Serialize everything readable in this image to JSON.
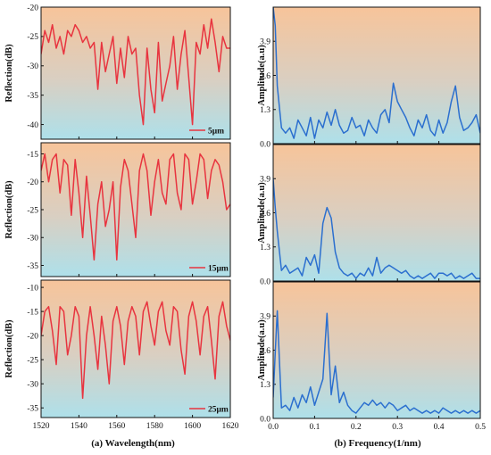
{
  "figure": {
    "left_xlabel": "(a)  Wavelength(nm)",
    "right_xlabel": "(b)  Frequency(1/nm)"
  },
  "chart_data": [
    {
      "type": "line",
      "panel": "left-top",
      "ylabel": "Reflection(dB)",
      "xlim": [
        1520,
        1620
      ],
      "ylim": [
        -42.5,
        -20
      ],
      "xticks": [
        1520,
        1540,
        1560,
        1580,
        1600,
        1620
      ],
      "yticks": [
        -20,
        -25,
        -30,
        -35,
        -40
      ],
      "show_xtick_labels": false,
      "series": [
        {
          "name": "5μm",
          "color": "#e8343f",
          "x": [
            1520,
            1522,
            1524,
            1526,
            1528,
            1530,
            1532,
            1534,
            1536,
            1538,
            1540,
            1542,
            1544,
            1546,
            1548,
            1550,
            1552,
            1554,
            1556,
            1558,
            1560,
            1562,
            1564,
            1566,
            1568,
            1570,
            1572,
            1574,
            1576,
            1578,
            1580,
            1582,
            1584,
            1586,
            1588,
            1590,
            1592,
            1594,
            1596,
            1598,
            1600,
            1602,
            1604,
            1606,
            1608,
            1610,
            1612,
            1614,
            1616,
            1618,
            1620
          ],
          "y": [
            -28,
            -24,
            -26,
            -23,
            -27,
            -25,
            -28,
            -24,
            -25,
            -23,
            -24,
            -26,
            -25,
            -27,
            -26,
            -34,
            -26,
            -31,
            -28,
            -25,
            -33,
            -27,
            -32,
            -25,
            -28,
            -27,
            -35,
            -40,
            -27,
            -34,
            -38,
            -26,
            -36,
            -33,
            -30,
            -25,
            -34,
            -28,
            -24,
            -32,
            -40,
            -26,
            -28,
            -23,
            -27,
            -22,
            -26,
            -31,
            -25,
            -27,
            -27
          ]
        }
      ]
    },
    {
      "type": "line",
      "panel": "left-middle",
      "ylabel": "Reflection(dB)",
      "xlim": [
        1520,
        1620
      ],
      "ylim": [
        -37,
        -13
      ],
      "xticks": [
        1520,
        1540,
        1560,
        1580,
        1600,
        1620
      ],
      "yticks": [
        -15,
        -20,
        -25,
        -30,
        -35
      ],
      "show_xtick_labels": false,
      "series": [
        {
          "name": "15μm",
          "color": "#e8343f",
          "x": [
            1520,
            1522,
            1524,
            1526,
            1528,
            1530,
            1532,
            1534,
            1536,
            1538,
            1540,
            1542,
            1544,
            1546,
            1548,
            1550,
            1552,
            1554,
            1556,
            1558,
            1560,
            1562,
            1564,
            1566,
            1568,
            1570,
            1572,
            1574,
            1576,
            1578,
            1580,
            1582,
            1584,
            1586,
            1588,
            1590,
            1592,
            1594,
            1596,
            1598,
            1600,
            1602,
            1604,
            1606,
            1608,
            1610,
            1612,
            1614,
            1616,
            1618,
            1620
          ],
          "y": [
            -18,
            -15,
            -20,
            -16,
            -15,
            -22,
            -16,
            -17,
            -26,
            -16,
            -22,
            -30,
            -19,
            -26,
            -34,
            -24,
            -20,
            -28,
            -25,
            -20,
            -34,
            -21,
            -16,
            -18,
            -24,
            -30,
            -18,
            -15,
            -18,
            -26,
            -20,
            -16,
            -22,
            -24,
            -16,
            -15,
            -22,
            -25,
            -15,
            -16,
            -24,
            -20,
            -15,
            -16,
            -23,
            -18,
            -16,
            -17,
            -20,
            -25,
            -24
          ]
        }
      ]
    },
    {
      "type": "line",
      "panel": "left-bottom",
      "ylabel": "Reflection(dB)",
      "xlim": [
        1520,
        1620
      ],
      "ylim": [
        -37,
        -8.5
      ],
      "xticks": [
        1520,
        1540,
        1560,
        1580,
        1600,
        1620
      ],
      "yticks": [
        -10,
        -15,
        -20,
        -25,
        -30,
        -35
      ],
      "show_xtick_labels": true,
      "series": [
        {
          "name": "25μm",
          "color": "#e8343f",
          "x": [
            1520,
            1522,
            1524,
            1526,
            1528,
            1530,
            1532,
            1534,
            1536,
            1538,
            1540,
            1542,
            1544,
            1546,
            1548,
            1550,
            1552,
            1554,
            1556,
            1558,
            1560,
            1562,
            1564,
            1566,
            1568,
            1570,
            1572,
            1574,
            1576,
            1578,
            1580,
            1582,
            1584,
            1586,
            1588,
            1590,
            1592,
            1594,
            1596,
            1598,
            1600,
            1602,
            1604,
            1606,
            1608,
            1610,
            1612,
            1614,
            1616,
            1618,
            1620
          ],
          "y": [
            -20,
            -15,
            -14,
            -19,
            -26,
            -14,
            -15,
            -24,
            -20,
            -14,
            -16,
            -33,
            -20,
            -14,
            -20,
            -27,
            -16,
            -22,
            -30,
            -17,
            -14,
            -18,
            -26,
            -17,
            -14,
            -16,
            -24,
            -15,
            -13,
            -18,
            -22,
            -15,
            -13,
            -19,
            -22,
            -14,
            -15,
            -23,
            -28,
            -16,
            -13,
            -17,
            -24,
            -16,
            -14,
            -21,
            -29,
            -16,
            -13,
            -18,
            -21
          ]
        }
      ]
    },
    {
      "type": "line",
      "panel": "right-top",
      "ylabel": "Amplitude(a.u)",
      "xlim": [
        0,
        0.5
      ],
      "ylim": [
        0,
        5.2
      ],
      "xticks": [
        0,
        0.1,
        0.2,
        0.3,
        0.4,
        0.5
      ],
      "yticks": [
        0.0,
        1.3,
        2.6,
        3.9
      ],
      "ytick_labels": [
        "0.0",
        "1.3",
        "2.6",
        "3.9"
      ],
      "show_xtick_labels": false,
      "series": [
        {
          "name": "",
          "color": "#2b6fcf",
          "x": [
            0.0,
            0.005,
            0.01,
            0.02,
            0.03,
            0.04,
            0.05,
            0.06,
            0.07,
            0.08,
            0.09,
            0.1,
            0.11,
            0.12,
            0.13,
            0.14,
            0.15,
            0.16,
            0.17,
            0.18,
            0.19,
            0.2,
            0.21,
            0.22,
            0.23,
            0.24,
            0.25,
            0.26,
            0.27,
            0.28,
            0.29,
            0.3,
            0.31,
            0.32,
            0.33,
            0.34,
            0.35,
            0.36,
            0.37,
            0.38,
            0.39,
            0.4,
            0.41,
            0.42,
            0.43,
            0.44,
            0.45,
            0.46,
            0.47,
            0.48,
            0.49,
            0.5
          ],
          "y": [
            5.2,
            4.5,
            2.2,
            0.6,
            0.4,
            0.6,
            0.2,
            0.9,
            0.6,
            0.3,
            1.0,
            0.2,
            0.9,
            0.6,
            1.2,
            0.7,
            1.3,
            0.7,
            0.4,
            0.5,
            1.0,
            0.6,
            0.7,
            0.3,
            0.9,
            0.6,
            0.4,
            1.1,
            1.3,
            0.8,
            2.3,
            1.6,
            1.3,
            1.0,
            0.6,
            0.3,
            0.9,
            0.6,
            1.1,
            0.5,
            0.3,
            0.9,
            0.4,
            0.8,
            1.6,
            2.2,
            1.0,
            0.5,
            0.6,
            0.8,
            1.1,
            0.4
          ]
        }
      ]
    },
    {
      "type": "line",
      "panel": "right-middle",
      "ylabel": "Amplitude(a.u)",
      "xlim": [
        0,
        0.5
      ],
      "ylim": [
        0,
        5.2
      ],
      "xticks": [
        0,
        0.1,
        0.2,
        0.3,
        0.4,
        0.5
      ],
      "yticks": [
        0.0,
        1.3,
        2.6,
        3.9
      ],
      "ytick_labels": [
        "0.0",
        "1.3",
        "2.6",
        "3.9"
      ],
      "show_xtick_labels": false,
      "series": [
        {
          "name": "",
          "color": "#2b6fcf",
          "x": [
            0.0,
            0.005,
            0.01,
            0.02,
            0.03,
            0.04,
            0.05,
            0.06,
            0.07,
            0.08,
            0.09,
            0.1,
            0.11,
            0.12,
            0.13,
            0.14,
            0.15,
            0.16,
            0.17,
            0.18,
            0.19,
            0.2,
            0.21,
            0.22,
            0.23,
            0.24,
            0.25,
            0.26,
            0.27,
            0.28,
            0.29,
            0.3,
            0.31,
            0.32,
            0.33,
            0.34,
            0.35,
            0.36,
            0.37,
            0.38,
            0.39,
            0.4,
            0.41,
            0.42,
            0.43,
            0.44,
            0.45,
            0.46,
            0.47,
            0.48,
            0.49,
            0.5
          ],
          "y": [
            3.9,
            2.8,
            1.9,
            0.4,
            0.6,
            0.3,
            0.4,
            0.5,
            0.2,
            0.9,
            0.6,
            1.0,
            0.3,
            2.2,
            2.8,
            2.4,
            1.1,
            0.5,
            0.3,
            0.2,
            0.3,
            0.1,
            0.3,
            0.2,
            0.5,
            0.2,
            0.9,
            0.3,
            0.5,
            0.6,
            0.5,
            0.4,
            0.3,
            0.4,
            0.2,
            0.1,
            0.2,
            0.1,
            0.2,
            0.3,
            0.1,
            0.3,
            0.3,
            0.2,
            0.3,
            0.1,
            0.2,
            0.1,
            0.2,
            0.3,
            0.1,
            0.1
          ]
        }
      ]
    },
    {
      "type": "line",
      "panel": "right-bottom",
      "ylabel": "Amplitude(a.u)",
      "xlim": [
        0,
        0.5
      ],
      "ylim": [
        0,
        5.2
      ],
      "xticks": [
        0,
        0.1,
        0.2,
        0.3,
        0.4,
        0.5
      ],
      "yticks": [
        0.0,
        1.3,
        2.6,
        3.9
      ],
      "ytick_labels": [
        "0.0",
        "1.3",
        "2.6",
        "3.9"
      ],
      "show_xtick_labels": true,
      "xtick_labels": [
        "0.0",
        "0.1",
        "0.2",
        "0.3",
        "0.4",
        "0.5"
      ],
      "series": [
        {
          "name": "",
          "color": "#2b6fcf",
          "x": [
            0.0,
            0.005,
            0.01,
            0.02,
            0.03,
            0.04,
            0.05,
            0.06,
            0.07,
            0.08,
            0.09,
            0.1,
            0.11,
            0.12,
            0.13,
            0.14,
            0.15,
            0.16,
            0.17,
            0.18,
            0.19,
            0.2,
            0.21,
            0.22,
            0.23,
            0.24,
            0.25,
            0.26,
            0.27,
            0.28,
            0.29,
            0.3,
            0.31,
            0.32,
            0.33,
            0.34,
            0.35,
            0.36,
            0.37,
            0.38,
            0.39,
            0.4,
            0.41,
            0.42,
            0.43,
            0.44,
            0.45,
            0.46,
            0.47,
            0.48,
            0.49,
            0.5
          ],
          "y": [
            0.8,
            2.5,
            4.1,
            0.4,
            0.5,
            0.3,
            0.8,
            0.4,
            0.9,
            0.6,
            1.2,
            0.5,
            1.0,
            1.5,
            4.0,
            0.9,
            2.0,
            0.6,
            1.0,
            0.5,
            0.3,
            0.2,
            0.4,
            0.6,
            0.5,
            0.7,
            0.5,
            0.6,
            0.4,
            0.6,
            0.5,
            0.3,
            0.4,
            0.5,
            0.3,
            0.4,
            0.3,
            0.2,
            0.3,
            0.2,
            0.3,
            0.2,
            0.4,
            0.3,
            0.2,
            0.3,
            0.2,
            0.3,
            0.2,
            0.3,
            0.2,
            0.3
          ]
        }
      ]
    }
  ]
}
